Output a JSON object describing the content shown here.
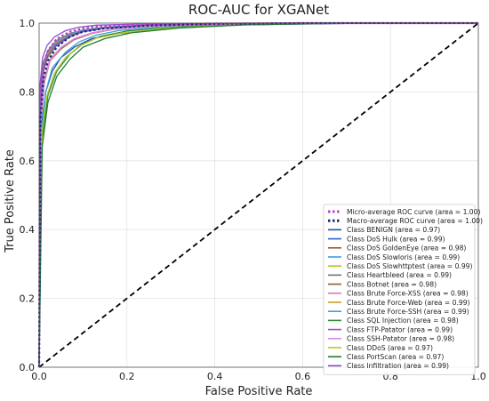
{
  "chart_data": {
    "type": "line",
    "title": "ROC-AUC for XGANet",
    "xlabel": "False Positive Rate",
    "ylabel": "True Positive Rate",
    "xlim": [
      0.0,
      1.0
    ],
    "ylim": [
      0.0,
      1.0
    ],
    "x_ticks": [
      "0.0",
      "0.2",
      "0.4",
      "0.6",
      "0.8",
      "1.0"
    ],
    "y_ticks": [
      "0.0",
      "0.2",
      "0.4",
      "0.6",
      "0.8",
      "1.0"
    ],
    "grid": true,
    "legend_position": "lower-right",
    "diagonal": {
      "x": [
        0,
        1
      ],
      "y": [
        0,
        1
      ],
      "color": "#000000",
      "style": "dashed"
    },
    "series": [
      {
        "name": "Micro-average ROC curve (area = 1.00)",
        "color": "#c23fbf",
        "style": "dotted",
        "x": [
          0,
          0.002,
          0.01,
          0.02,
          0.04,
          0.07,
          0.1,
          0.15,
          0.25,
          0.4,
          0.6,
          1.0
        ],
        "y": [
          0,
          0.78,
          0.88,
          0.92,
          0.955,
          0.975,
          0.985,
          0.992,
          0.996,
          0.999,
          1.0,
          1.0
        ]
      },
      {
        "name": "Macro-average ROC curve (area = 1.00)",
        "color": "#1c2b7a",
        "style": "dotted",
        "x": [
          0,
          0.003,
          0.01,
          0.02,
          0.04,
          0.07,
          0.1,
          0.15,
          0.25,
          0.4,
          0.6,
          1.0
        ],
        "y": [
          0,
          0.72,
          0.84,
          0.89,
          0.93,
          0.96,
          0.975,
          0.985,
          0.993,
          0.998,
          1.0,
          1.0
        ]
      },
      {
        "name": "Class BENIGN (area = 0.97)",
        "color": "#1f4fa8",
        "style": "solid",
        "x": [
          0,
          0.005,
          0.015,
          0.03,
          0.05,
          0.08,
          0.12,
          0.18,
          0.3,
          0.45,
          0.7,
          1.0
        ],
        "y": [
          0,
          0.7,
          0.8,
          0.86,
          0.9,
          0.93,
          0.955,
          0.97,
          0.985,
          0.995,
          0.999,
          1.0
        ]
      },
      {
        "name": "Class DoS Hulk (area = 0.99)",
        "color": "#2e63c9",
        "style": "solid",
        "x": [
          0,
          0.003,
          0.01,
          0.02,
          0.04,
          0.07,
          0.1,
          0.15,
          0.25,
          0.4,
          0.6,
          1.0
        ],
        "y": [
          0,
          0.75,
          0.86,
          0.9,
          0.935,
          0.96,
          0.975,
          0.985,
          0.993,
          0.998,
          1.0,
          1.0
        ]
      },
      {
        "name": "Class DoS GoldenEye (area = 0.98)",
        "color": "#b04a3c",
        "style": "solid",
        "x": [
          0,
          0.003,
          0.01,
          0.02,
          0.04,
          0.07,
          0.1,
          0.16,
          0.26,
          0.4,
          0.6,
          1.0
        ],
        "y": [
          0,
          0.78,
          0.87,
          0.91,
          0.945,
          0.965,
          0.978,
          0.987,
          0.994,
          0.998,
          1.0,
          1.0
        ]
      },
      {
        "name": "Class DoS Slowloris (area = 0.99)",
        "color": "#3aa0d8",
        "style": "solid",
        "x": [
          0,
          0.005,
          0.015,
          0.03,
          0.06,
          0.09,
          0.13,
          0.18,
          0.28,
          0.42,
          0.65,
          1.0
        ],
        "y": [
          0,
          0.68,
          0.8,
          0.87,
          0.915,
          0.945,
          0.965,
          0.978,
          0.99,
          0.997,
          1.0,
          1.0
        ]
      },
      {
        "name": "Class DoS Slowhttptest (area = 0.99)",
        "color": "#b5c21e",
        "style": "solid",
        "x": [
          0,
          0.003,
          0.01,
          0.02,
          0.04,
          0.07,
          0.1,
          0.15,
          0.25,
          0.4,
          0.6,
          1.0
        ],
        "y": [
          0,
          0.76,
          0.86,
          0.9,
          0.94,
          0.962,
          0.977,
          0.986,
          0.994,
          0.998,
          1.0,
          1.0
        ]
      },
      {
        "name": "Class Heartbleed (area = 0.99)",
        "color": "#7b6f66",
        "style": "solid",
        "x": [
          0,
          0.002,
          0.008,
          0.02,
          0.04,
          0.07,
          0.1,
          0.15,
          0.25,
          0.4,
          0.6,
          1.0
        ],
        "y": [
          0,
          0.8,
          0.88,
          0.92,
          0.95,
          0.97,
          0.98,
          0.988,
          0.995,
          0.999,
          1.0,
          1.0
        ]
      },
      {
        "name": "Class Botnet (area = 0.98)",
        "color": "#8a5a3a",
        "style": "solid",
        "x": [
          0,
          0.004,
          0.012,
          0.025,
          0.05,
          0.08,
          0.12,
          0.17,
          0.27,
          0.42,
          0.65,
          1.0
        ],
        "y": [
          0,
          0.72,
          0.83,
          0.89,
          0.925,
          0.952,
          0.97,
          0.982,
          0.992,
          0.997,
          1.0,
          1.0
        ]
      },
      {
        "name": "Class Brute Force-XSS (area = 0.98)",
        "color": "#d678c8",
        "style": "solid",
        "x": [
          0,
          0.004,
          0.012,
          0.025,
          0.05,
          0.08,
          0.12,
          0.17,
          0.27,
          0.42,
          0.65,
          1.0
        ],
        "y": [
          0,
          0.74,
          0.84,
          0.895,
          0.93,
          0.955,
          0.972,
          0.983,
          0.992,
          0.997,
          1.0,
          1.0
        ]
      },
      {
        "name": "Class Brute Force-Web (area = 0.99)",
        "color": "#c9a12b",
        "style": "solid",
        "x": [
          0,
          0.003,
          0.01,
          0.02,
          0.04,
          0.07,
          0.1,
          0.15,
          0.25,
          0.4,
          0.6,
          1.0
        ],
        "y": [
          0,
          0.77,
          0.87,
          0.91,
          0.943,
          0.965,
          0.978,
          0.987,
          0.994,
          0.998,
          1.0,
          1.0
        ]
      },
      {
        "name": "Class Brute Force-SSH (area = 0.99)",
        "color": "#4f9bd0",
        "style": "solid",
        "x": [
          0,
          0.003,
          0.01,
          0.02,
          0.04,
          0.07,
          0.1,
          0.15,
          0.25,
          0.4,
          0.6,
          1.0
        ],
        "y": [
          0,
          0.79,
          0.88,
          0.915,
          0.948,
          0.968,
          0.98,
          0.988,
          0.995,
          0.999,
          1.0,
          1.0
        ]
      },
      {
        "name": "Class SQL Injection (area = 0.98)",
        "color": "#2e8a3a",
        "style": "solid",
        "x": [
          0,
          0.006,
          0.02,
          0.04,
          0.07,
          0.1,
          0.14,
          0.2,
          0.3,
          0.45,
          0.7,
          1.0
        ],
        "y": [
          0,
          0.66,
          0.79,
          0.86,
          0.91,
          0.94,
          0.962,
          0.977,
          0.988,
          0.996,
          1.0,
          1.0
        ]
      },
      {
        "name": "Class FTP-Patator (area = 0.99)",
        "color": "#8e4fd1",
        "style": "solid",
        "x": [
          0,
          0.002,
          0.008,
          0.018,
          0.035,
          0.06,
          0.09,
          0.13,
          0.22,
          0.38,
          0.6,
          1.0
        ],
        "y": [
          0,
          0.82,
          0.9,
          0.935,
          0.96,
          0.978,
          0.988,
          0.994,
          0.997,
          0.999,
          1.0,
          1.0
        ]
      },
      {
        "name": "Class SSH-Patator (area = 0.98)",
        "color": "#e08ad4",
        "style": "solid",
        "x": [
          0,
          0.004,
          0.012,
          0.025,
          0.05,
          0.08,
          0.12,
          0.17,
          0.27,
          0.42,
          0.65,
          1.0
        ],
        "y": [
          0,
          0.73,
          0.835,
          0.89,
          0.928,
          0.954,
          0.971,
          0.982,
          0.992,
          0.997,
          1.0,
          1.0
        ]
      },
      {
        "name": "Class DDoS (area = 0.97)",
        "color": "#bcc52a",
        "style": "solid",
        "x": [
          0,
          0.006,
          0.018,
          0.035,
          0.06,
          0.09,
          0.13,
          0.19,
          0.3,
          0.45,
          0.7,
          1.0
        ],
        "y": [
          0,
          0.68,
          0.79,
          0.855,
          0.9,
          0.932,
          0.956,
          0.972,
          0.986,
          0.995,
          1.0,
          1.0
        ]
      },
      {
        "name": "Class PortScan (area = 0.97)",
        "color": "#1f7f2f",
        "style": "solid",
        "x": [
          0,
          0.007,
          0.02,
          0.04,
          0.07,
          0.1,
          0.15,
          0.21,
          0.32,
          0.47,
          0.7,
          1.0
        ],
        "y": [
          0,
          0.64,
          0.77,
          0.845,
          0.895,
          0.93,
          0.955,
          0.972,
          0.986,
          0.995,
          1.0,
          1.0
        ]
      },
      {
        "name": "Class Infiltration (area = 0.99)",
        "color": "#7e4ab8",
        "style": "solid",
        "x": [
          0,
          0.003,
          0.01,
          0.02,
          0.04,
          0.07,
          0.1,
          0.15,
          0.25,
          0.4,
          0.6,
          1.0
        ],
        "y": [
          0,
          0.76,
          0.865,
          0.905,
          0.94,
          0.963,
          0.977,
          0.986,
          0.994,
          0.998,
          1.0,
          1.0
        ]
      }
    ]
  }
}
